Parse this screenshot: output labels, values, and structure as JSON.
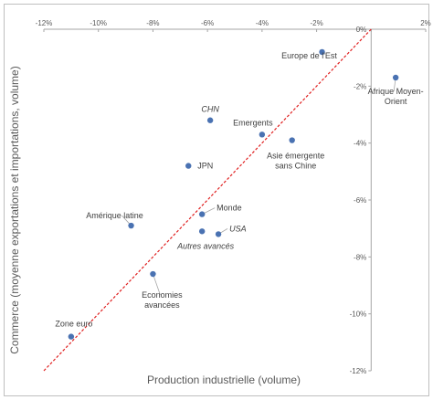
{
  "chart_data": {
    "type": "scatter",
    "xlabel": "Production industrielle (volume)",
    "ylabel": "Commerce (moyenne exportations et importations, volume)",
    "xlim": [
      -12,
      2
    ],
    "ylim": [
      -12,
      0
    ],
    "x_ticks": [
      "-12%",
      "-10%",
      "-8%",
      "-6%",
      "-4%",
      "-2%",
      "0%",
      "2%"
    ],
    "y_ticks": [
      "0%",
      "-2%",
      "-4%",
      "-6%",
      "-8%",
      "-10%",
      "-12%"
    ],
    "grid": false,
    "marker_color": "#4a72b2",
    "diagonal_color": "#e02020",
    "diagonal": [
      [
        -12,
        -12
      ],
      [
        0,
        0
      ]
    ],
    "points": [
      {
        "label": "Europe de l'Est",
        "x": -1.8,
        "y": -0.8,
        "italic": false
      },
      {
        "label": "Afrique Moyen-Orient",
        "x": 0.9,
        "y": -1.7,
        "italic": false
      },
      {
        "label": "CHN",
        "x": -5.9,
        "y": -3.2,
        "italic": true
      },
      {
        "label": "Emergents",
        "x": -4.0,
        "y": -3.7,
        "italic": false
      },
      {
        "label": "Asie émergente sans Chine",
        "x": -2.9,
        "y": -3.9,
        "italic": false
      },
      {
        "label": "JPN",
        "x": -6.7,
        "y": -4.8,
        "italic": false
      },
      {
        "label": "Amérique latine",
        "x": -8.8,
        "y": -6.9,
        "italic": false
      },
      {
        "label": "Monde",
        "x": -6.2,
        "y": -6.5,
        "italic": false
      },
      {
        "label": "USA",
        "x": -5.6,
        "y": -7.2,
        "italic": true
      },
      {
        "label": "Autres avancés",
        "x": -6.2,
        "y": -7.1,
        "italic": true
      },
      {
        "label": "Economies avancées",
        "x": -8.0,
        "y": -8.6,
        "italic": false
      },
      {
        "label": "Zone euro",
        "x": -11.0,
        "y": -10.8,
        "italic": false
      }
    ]
  }
}
